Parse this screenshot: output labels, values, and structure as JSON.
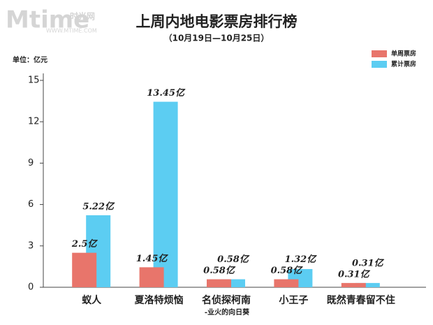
{
  "chart_data": {
    "type": "bar",
    "title": "上周内地电影票房排行榜",
    "subtitle": "（10月19日—10月25日）",
    "unit_label": "单位：亿元",
    "watermark": [
      "Mtime",
      "时光网",
      "WWW.MTIME.COM"
    ],
    "categories": [
      "蚁人",
      "夏洛特烦恼",
      "名侦探柯南",
      "小王子",
      "既然青春留不住"
    ],
    "annotations": [
      "-业火的向日葵"
    ],
    "series": [
      {
        "name": "单周票房",
        "color": "#e8756b",
        "values": [
          2.5,
          1.45,
          0.58,
          0.58,
          0.31
        ],
        "value_labels": [
          "2.5亿",
          "1.45亿",
          "0.58亿",
          "0.58亿",
          "0.31亿"
        ]
      },
      {
        "name": "累计票房",
        "color": "#5ccdf2",
        "values": [
          5.22,
          13.45,
          0.58,
          1.32,
          0.31
        ],
        "value_labels": [
          "5.22亿",
          "13.45亿",
          "0.58亿",
          "1.32亿",
          "0.31亿"
        ]
      }
    ],
    "ylim": [
      0,
      15
    ],
    "yticks": [
      0,
      3,
      6,
      9,
      12,
      15
    ],
    "grid": false,
    "legend": "top-right"
  }
}
